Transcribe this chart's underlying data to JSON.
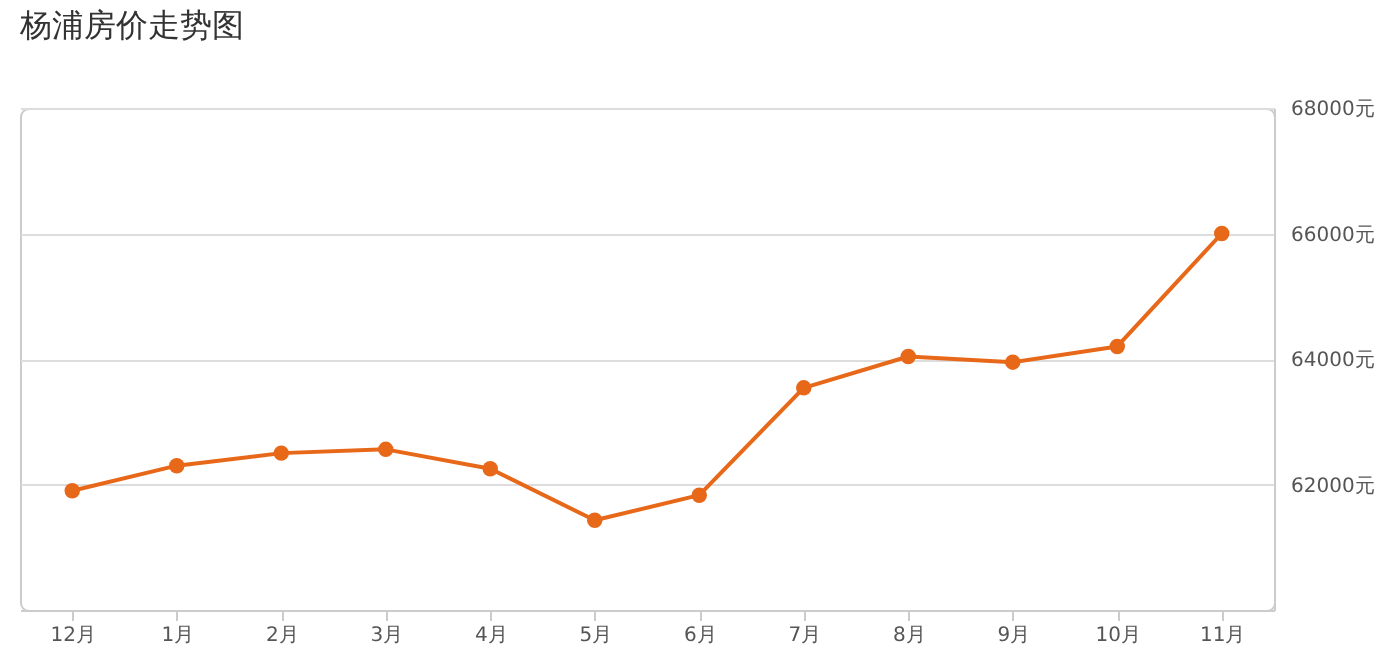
{
  "chart_data": {
    "type": "line",
    "title": "杨浦房价走势图",
    "categories": [
      "12月",
      "1月",
      "2月",
      "3月",
      "4月",
      "5月",
      "6月",
      "7月",
      "8月",
      "9月",
      "10月",
      "11月"
    ],
    "series": [
      {
        "color": "#e8681a",
        "values": [
          61900,
          62300,
          62500,
          62560,
          62250,
          61430,
          61830,
          63540,
          64040,
          63950,
          64200,
          66000
        ]
      }
    ],
    "ylim": [
      60000,
      68000
    ],
    "yticks": [
      {
        "value": 62000,
        "label": "62000元"
      },
      {
        "value": 64000,
        "label": "64000元"
      },
      {
        "value": 66000,
        "label": "66000元"
      },
      {
        "value": 68000,
        "label": "68000元"
      }
    ],
    "grid": "y",
    "marker": "circle",
    "line_style": "solid",
    "legend": false
  }
}
